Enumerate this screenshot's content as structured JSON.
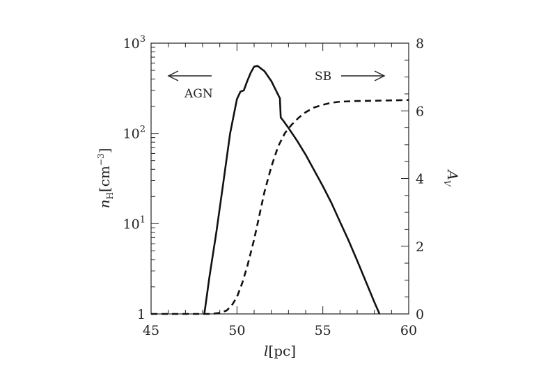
{
  "chart_data": {
    "type": "line",
    "xlabel": {
      "main": "l",
      "unit": "[pc]"
    },
    "ylabel_left": {
      "main": "n",
      "sub": "H",
      "unit": "[cm",
      "exp": "−3",
      "close": "]"
    },
    "ylabel_right": {
      "main": "A",
      "sub": "V"
    },
    "xlim": [
      45,
      60
    ],
    "ylim_left": [
      1,
      1000
    ],
    "yscale_left": "log",
    "ylim_right": [
      0,
      8
    ],
    "x_ticks": [
      {
        "value": 45,
        "label": "45"
      },
      {
        "value": 50,
        "label": "50"
      },
      {
        "value": 55,
        "label": "55"
      },
      {
        "value": 60,
        "label": "60"
      }
    ],
    "y_left_ticks": [
      {
        "value": 1,
        "base": "1",
        "exp": ""
      },
      {
        "value": 10,
        "base": "10",
        "exp": "1"
      },
      {
        "value": 100,
        "base": "10",
        "exp": "2"
      },
      {
        "value": 1000,
        "base": "10",
        "exp": "3"
      }
    ],
    "y_right_ticks": [
      {
        "value": 0,
        "label": "0"
      },
      {
        "value": 2,
        "label": "2"
      },
      {
        "value": 4,
        "label": "4"
      },
      {
        "value": 6,
        "label": "6"
      },
      {
        "value": 8,
        "label": "8"
      }
    ],
    "annotations": [
      {
        "text": "AGN",
        "arrow": "left"
      },
      {
        "text": "SB",
        "arrow": "right"
      }
    ],
    "series": [
      {
        "axis": "left",
        "style": "solid",
        "x": [
          48.1,
          48.4,
          48.8,
          49.2,
          49.6,
          50.0,
          50.2,
          50.4,
          50.6,
          50.8,
          51.0,
          51.2,
          51.6,
          52.0,
          52.5,
          52.55,
          52.7,
          53.0,
          53.5,
          54.0,
          54.5,
          55.0,
          55.5,
          56.0,
          56.5,
          57.0,
          57.5,
          58.0,
          58.3
        ],
        "y": [
          1.0,
          2.6,
          8.0,
          28.0,
          100.0,
          240.0,
          290.0,
          300.0,
          380.0,
          470.0,
          550.0,
          560.0,
          490.0,
          380.0,
          245.0,
          150.0,
          138.0,
          115.0,
          83.0,
          58.0,
          39.0,
          26.0,
          17.0,
          10.5,
          6.5,
          3.9,
          2.3,
          1.35,
          1.0
        ]
      },
      {
        "axis": "right",
        "style": "dashed",
        "x": [
          45.0,
          48.5,
          49.0,
          49.4,
          49.7,
          50.0,
          50.3,
          50.6,
          51.0,
          51.3,
          51.6,
          52.0,
          52.4,
          52.8,
          53.2,
          53.6,
          54.0,
          54.5,
          55.0,
          55.5,
          56.0,
          57.0,
          58.0,
          59.0,
          60.0
        ],
        "y": [
          0.0,
          0.0,
          0.03,
          0.1,
          0.25,
          0.5,
          0.9,
          1.4,
          2.2,
          2.9,
          3.6,
          4.35,
          4.95,
          5.35,
          5.6,
          5.8,
          5.96,
          6.1,
          6.18,
          6.24,
          6.27,
          6.29,
          6.3,
          6.31,
          6.32
        ]
      }
    ]
  }
}
